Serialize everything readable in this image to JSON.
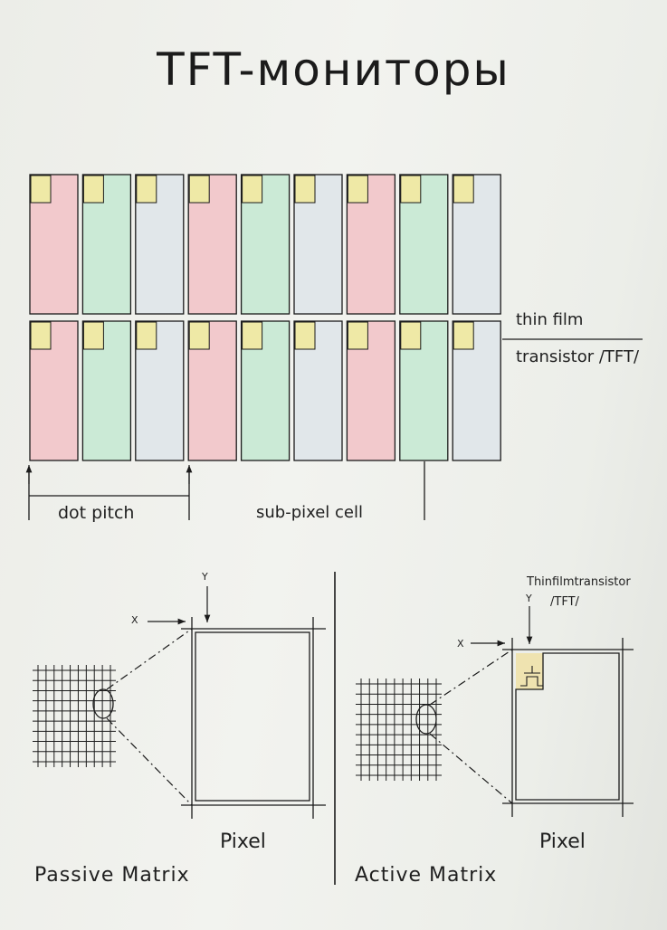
{
  "title": "TFT-мониторы",
  "labels": {
    "thin_film": "thin film",
    "transistor": "transistor /TFT/",
    "dot_pitch": "dot pitch",
    "sub_pixel": "sub-pixel cell",
    "pixel_passive": "Pixel",
    "pixel_active": "Pixel",
    "passive": "Passive Matrix",
    "active": "Active Matrix",
    "x_passive": "X",
    "y_passive": "Y",
    "x_active": "X",
    "y_active": "Y",
    "tft_active_1": "Thinfilmtransistor",
    "tft_active_2": "/TFT/"
  },
  "colors": {
    "red": "#f2c9cc",
    "green": "#cbead6",
    "blue": "#e1e7ea",
    "transistor": "#efe9a6",
    "ink": "#1b1b1b"
  },
  "subpixel_grid": {
    "rows": [
      [
        "red",
        "green",
        "blue",
        "red",
        "green",
        "blue",
        "red",
        "green",
        "blue"
      ],
      [
        "red",
        "green",
        "blue",
        "red",
        "green",
        "blue",
        "red",
        "green",
        "blue"
      ]
    ]
  }
}
